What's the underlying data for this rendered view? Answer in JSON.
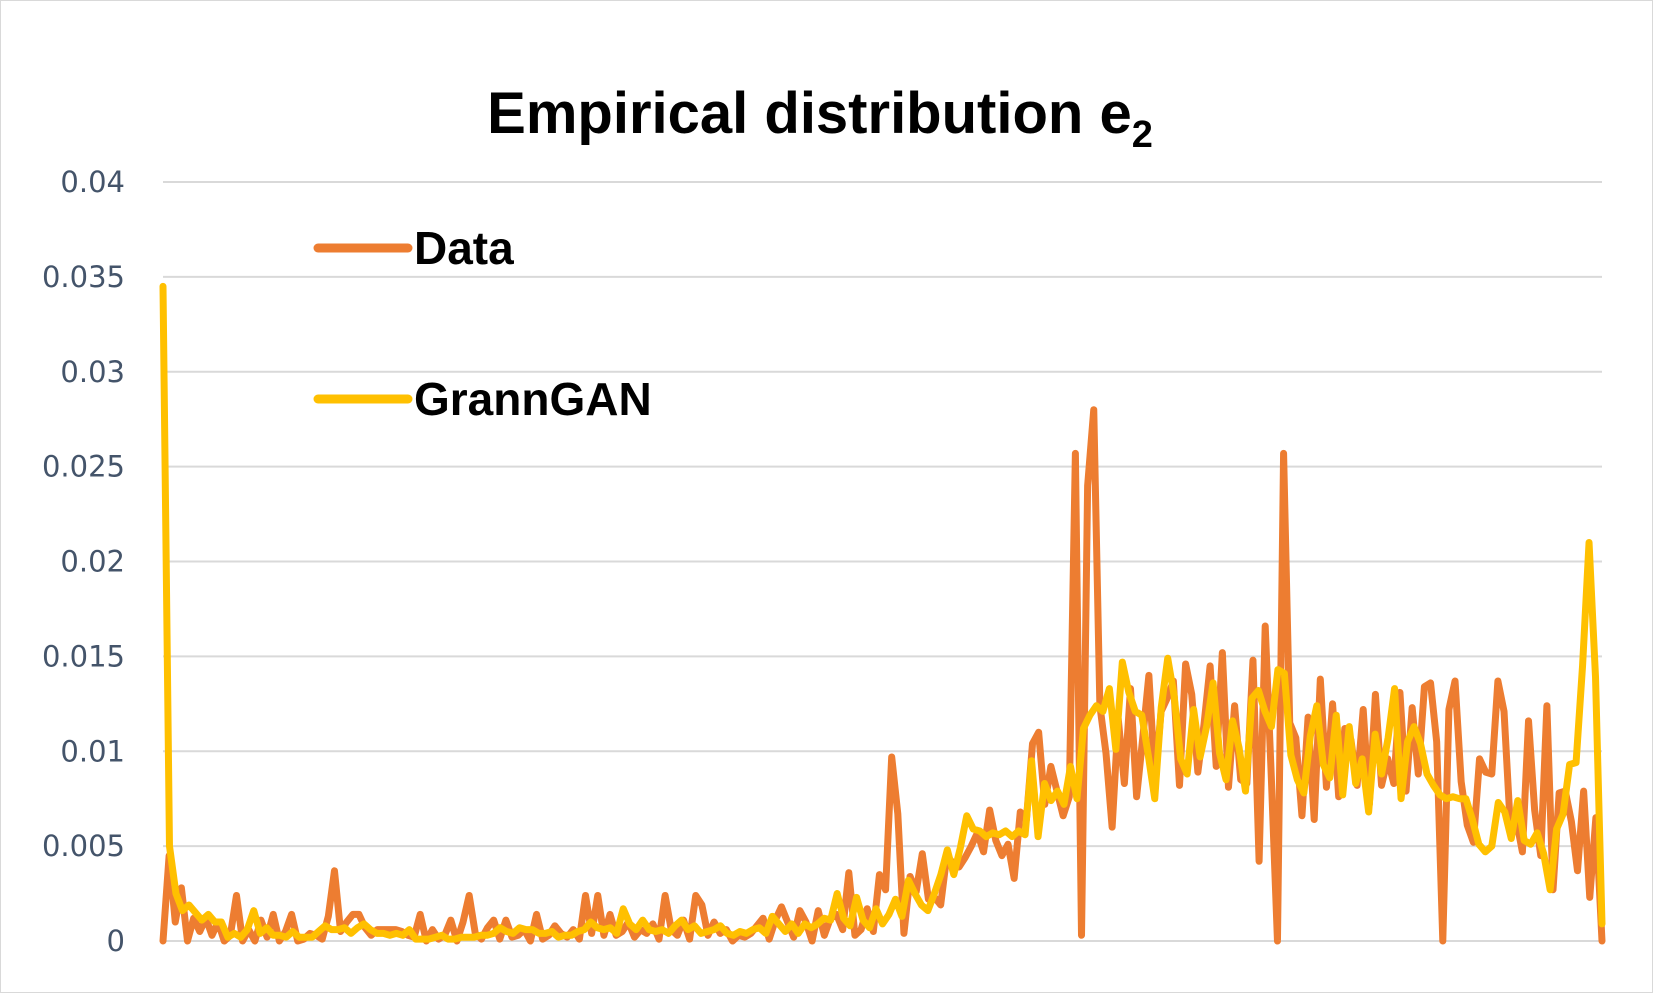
{
  "chart_data": {
    "type": "line",
    "title": "Empirical distribution e",
    "title_subscript": "2",
    "xlabel": "",
    "ylabel": "",
    "ylim": [
      0,
      0.04
    ],
    "yticks": [
      "0",
      "0.005",
      "0.01",
      "0.015",
      "0.02",
      "0.025",
      "0.03",
      "0.035",
      "0.04"
    ],
    "grid": true,
    "legend_position": "top-left",
    "series": [
      {
        "name": "Data",
        "color": "#ed7d31",
        "values": [
          0,
          0.0045,
          0.001,
          0.0028,
          0,
          0.0012,
          0.0005,
          0.0012,
          0.0003,
          0.001,
          0,
          0.0003,
          0.0024,
          0,
          0.0006,
          0,
          0.0011,
          0.0002,
          0.0014,
          0,
          0.0005,
          0.0014,
          0,
          0.0001,
          0.0004,
          0.0003,
          0.0001,
          0.0013,
          0.0037,
          0.0005,
          0.001,
          0.0014,
          0.0014,
          0.0007,
          0.0003,
          0.0006,
          0.0006,
          0.0006,
          0.0006,
          0.0005,
          0.0003,
          0.0002,
          0.0014,
          0,
          0.0006,
          0.0001,
          0.0003,
          0.0011,
          0,
          0.001,
          0.0024,
          0.0004,
          0.0001,
          0.0007,
          0.0011,
          0.0001,
          0.0011,
          0.0002,
          0.0003,
          0.0006,
          0,
          0.0014,
          0.0001,
          0.0003,
          0.0008,
          0.0004,
          0.0002,
          0.0006,
          0.0001,
          0.0024,
          0.0004,
          0.0024,
          0.0003,
          0.0014,
          0.0003,
          0.0005,
          0.001,
          0.0002,
          0.0006,
          0.0004,
          0.0009,
          0.0001,
          0.0024,
          0.0006,
          0.0003,
          0.0011,
          0.0001,
          0.0024,
          0.0019,
          0.0003,
          0.001,
          0.0004,
          0.0006,
          0,
          0.0003,
          0.0002,
          0.0004,
          0.0008,
          0.0012,
          0.0001,
          0.0011,
          0.0018,
          0.001,
          0.0002,
          0.0016,
          0.001,
          0,
          0.0016,
          0.0003,
          0.0012,
          0.0014,
          0.0006,
          0.0036,
          0.0003,
          0.0006,
          0.0017,
          0.0005,
          0.0035,
          0.0027,
          0.0097,
          0.0067,
          0.0004,
          0.0034,
          0.0026,
          0.0046,
          0.0022,
          0.0023,
          0.0019,
          0.0045,
          0.0041,
          0.0039,
          0.0044,
          0.005,
          0.0057,
          0.0047,
          0.0069,
          0.0053,
          0.0045,
          0.0051,
          0.0033,
          0.0068,
          0.0064,
          0.0104,
          0.011,
          0.0072,
          0.0092,
          0.0079,
          0.0066,
          0.0076,
          0.0257,
          0.0003,
          0.024,
          0.028,
          0.0124,
          0.0099,
          0.006,
          0.0117,
          0.0083,
          0.0133,
          0.0076,
          0.0107,
          0.014,
          0.0085,
          0.0121,
          0.0128,
          0.0137,
          0.0082,
          0.0146,
          0.013,
          0.0089,
          0.0114,
          0.0145,
          0.0092,
          0.0152,
          0.0081,
          0.0124,
          0.0085,
          0.0083,
          0.0148,
          0.0042,
          0.0166,
          0.0086,
          0,
          0.0257,
          0.0115,
          0.0107,
          0.0066,
          0.0118,
          0.0064,
          0.0138,
          0.0081,
          0.0125,
          0.0076,
          0.0112,
          0.0106,
          0.0082,
          0.0122,
          0.0072,
          0.013,
          0.0082,
          0.0096,
          0.0083,
          0.0131,
          0.0079,
          0.0123,
          0.0088,
          0.0134,
          0.0136,
          0.0105,
          0,
          0.0122,
          0.0137,
          0.0084,
          0.0061,
          0.0052,
          0.0096,
          0.0089,
          0.0088,
          0.0137,
          0.0121,
          0.0062,
          0.0064,
          0.0047,
          0.0116,
          0.0069,
          0.0045,
          0.0124,
          0.0027,
          0.0078,
          0.0079,
          0.0063,
          0.0037,
          0.0079,
          0.0023,
          0.0065,
          0
        ]
      },
      {
        "name": "GrannGAN",
        "color": "#ffc000",
        "values": [
          0.0345,
          0.005,
          0.0025,
          0.0016,
          0.0019,
          0.0015,
          0.0011,
          0.0014,
          0.001,
          0.001,
          0.0002,
          0.0004,
          0.0002,
          0.0006,
          0.0016,
          0.0004,
          0.0007,
          0.0003,
          0.0003,
          0.0002,
          0.0005,
          0.0002,
          0.0002,
          0.0002,
          0.0005,
          0.0008,
          0.0006,
          0.0006,
          0.0007,
          0.0004,
          0.0007,
          0.0009,
          0.0006,
          0.0004,
          0.0004,
          0.0003,
          0.0004,
          0.0003,
          0.0006,
          0.0001,
          0.0001,
          0.0001,
          0.0002,
          0.0003,
          0.0001,
          0.0001,
          0.0002,
          0.0002,
          0.0002,
          0.0003,
          0.0003,
          0.0004,
          0.0007,
          0.0005,
          0.0004,
          0.0007,
          0.0006,
          0.0006,
          0.0004,
          0.0004,
          0.0005,
          0.0002,
          0.0003,
          0.0003,
          0.0005,
          0.0006,
          0.001,
          0.0007,
          0.0006,
          0.0007,
          0.0004,
          0.0017,
          0.0009,
          0.0006,
          0.0011,
          0.0006,
          0.0005,
          0.0006,
          0.0004,
          0.0008,
          0.0011,
          0.0006,
          0.0008,
          0.0004,
          0.0005,
          0.0006,
          0.0008,
          0.0004,
          0.0003,
          0.0005,
          0.0004,
          0.0006,
          0.0007,
          0.0004,
          0.0013,
          0.0009,
          0.0005,
          0.0009,
          0.0004,
          0.0009,
          0.0007,
          0.0009,
          0.0012,
          0.0011,
          0.0025,
          0.0012,
          0.0008,
          0.0023,
          0.0011,
          0.0007,
          0.0017,
          0.0009,
          0.0014,
          0.0022,
          0.0013,
          0.0032,
          0.0025,
          0.0019,
          0.0016,
          0.0025,
          0.0035,
          0.0048,
          0.0035,
          0.0049,
          0.0066,
          0.0059,
          0.0058,
          0.0055,
          0.0057,
          0.0056,
          0.0058,
          0.0055,
          0.0058,
          0.0056,
          0.0095,
          0.0055,
          0.0083,
          0.0074,
          0.0079,
          0.0072,
          0.0092,
          0.0075,
          0.0112,
          0.0119,
          0.0124,
          0.0121,
          0.0133,
          0.0101,
          0.0147,
          0.0131,
          0.0121,
          0.0119,
          0.0098,
          0.0075,
          0.0123,
          0.0149,
          0.0129,
          0.0096,
          0.0088,
          0.0122,
          0.0097,
          0.0113,
          0.0136,
          0.0099,
          0.0085,
          0.0116,
          0.0102,
          0.0079,
          0.0128,
          0.0132,
          0.0121,
          0.0113,
          0.0143,
          0.0141,
          0.0098,
          0.0085,
          0.0078,
          0.0108,
          0.0124,
          0.0093,
          0.0086,
          0.0119,
          0.0077,
          0.0113,
          0.0083,
          0.0096,
          0.0068,
          0.0109,
          0.0088,
          0.0107,
          0.0133,
          0.0075,
          0.0105,
          0.0113,
          0.0104,
          0.0088,
          0.0082,
          0.0077,
          0.0075,
          0.0076,
          0.0075,
          0.0075,
          0.0064,
          0.0051,
          0.0047,
          0.005,
          0.0073,
          0.0068,
          0.0054,
          0.0074,
          0.0053,
          0.0051,
          0.0057,
          0.0046,
          0.0027,
          0.0059,
          0.0067,
          0.0093,
          0.0094,
          0.0145,
          0.021,
          0.0139,
          0.0009
        ]
      }
    ]
  }
}
